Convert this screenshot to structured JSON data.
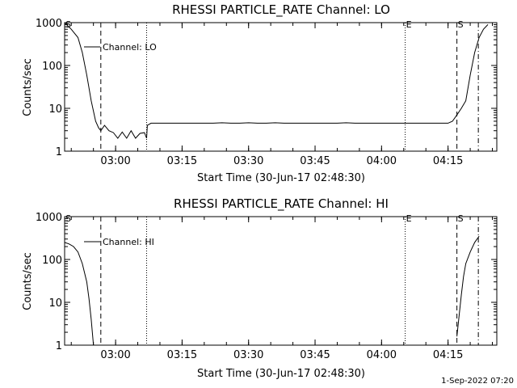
{
  "footer_timestamp": "1-Sep-2022 07:20",
  "chart_data": [
    {
      "type": "line",
      "title": "RHESSI PARTICLE_RATE Channel: LO",
      "xlabel": "Start Time (30-Jun-17 02:48:30)",
      "ylabel": "Counts/sec",
      "y_scale": "log",
      "ylim": [
        1,
        1000
      ],
      "xlim": [
        "02:48:30",
        "04:26:00"
      ],
      "yticks": [
        "1",
        "10",
        "100",
        "1000"
      ],
      "xticks": [
        "03:00",
        "03:15",
        "03:30",
        "03:45",
        "04:00",
        "04:15"
      ],
      "legend": "Channel: LO",
      "legend_position": "top-left",
      "markers": [
        {
          "label": "S",
          "time": "02:48:30",
          "style": "solid"
        },
        {
          "label": "",
          "time": "02:56:40",
          "style": "dashed"
        },
        {
          "label": "",
          "time": "03:07:00",
          "style": "dotted"
        },
        {
          "label": "E",
          "time": "04:05:20",
          "style": "dotted"
        },
        {
          "label": "S",
          "time": "04:17:00",
          "style": "dashed"
        },
        {
          "label": "",
          "time": "04:21:50",
          "style": "dash-dot"
        }
      ],
      "series": [
        {
          "x": [
            "02:48:30",
            "02:50:00",
            "02:51:30",
            "02:52:30",
            "02:53:30",
            "02:54:30",
            "02:55:30",
            "02:56:10",
            "02:56:40",
            "02:57:30",
            "02:58:30",
            "02:59:30",
            "03:00:30",
            "03:01:30",
            "03:02:30",
            "03:03:30",
            "03:04:30",
            "03:05:30",
            "03:06:30",
            "03:07:00",
            "03:07:10",
            "03:08:00",
            "03:10:00",
            "03:12:00",
            "03:14:00",
            "03:16:00",
            "03:18:00",
            "03:20:00",
            "03:22:00",
            "03:24:00",
            "03:26:00",
            "03:28:00",
            "03:30:00",
            "03:32:00",
            "03:34:00",
            "03:36:00",
            "03:38:00",
            "03:40:00",
            "03:42:00",
            "03:44:00",
            "03:46:00",
            "03:48:00",
            "03:50:00",
            "03:52:00",
            "03:54:00",
            "03:56:00",
            "03:58:00",
            "04:00:00",
            "04:02:00",
            "04:04:00",
            "04:05:20",
            "04:07:00",
            "04:09:00",
            "04:11:00",
            "04:12:00",
            "04:13:00",
            "04:14:00",
            "04:15:00",
            "04:16:00",
            "04:17:00",
            "04:18:00",
            "04:19:00",
            "04:20:00",
            "04:21:00",
            "04:22:00",
            "04:23:00",
            "04:24:00"
          ],
          "y": [
            1000,
            700,
            450,
            200,
            60,
            15,
            5,
            3.5,
            3,
            4,
            3,
            2.7,
            2,
            2.8,
            2,
            3,
            2,
            2.6,
            2.7,
            2,
            4,
            4.5,
            4.5,
            4.5,
            4.5,
            4.5,
            4.5,
            4.5,
            4.5,
            4.6,
            4.5,
            4.5,
            4.6,
            4.5,
            4.5,
            4.6,
            4.5,
            4.5,
            4.5,
            4.5,
            4.5,
            4.5,
            4.5,
            4.6,
            4.5,
            4.5,
            4.5,
            4.5,
            4.5,
            4.5,
            4.5,
            4.5,
            4.5,
            4.5,
            4.5,
            4.5,
            4.5,
            4.5,
            5,
            7,
            10,
            15,
            60,
            200,
            450,
            700,
            900
          ]
        }
      ]
    },
    {
      "type": "line",
      "title": "RHESSI PARTICLE_RATE Channel: HI",
      "xlabel": "Start Time (30-Jun-17 02:48:30)",
      "ylabel": "Counts/sec",
      "y_scale": "log",
      "ylim": [
        1,
        1000
      ],
      "xlim": [
        "02:48:30",
        "04:26:00"
      ],
      "yticks": [
        "1",
        "10",
        "100",
        "1000"
      ],
      "xticks": [
        "03:00",
        "03:15",
        "03:30",
        "03:45",
        "04:00",
        "04:15"
      ],
      "legend": "Channel: HI",
      "legend_position": "top-left",
      "markers": [
        {
          "label": "S",
          "time": "02:48:30",
          "style": "solid"
        },
        {
          "label": "",
          "time": "02:56:40",
          "style": "dashed"
        },
        {
          "label": "",
          "time": "03:07:00",
          "style": "dotted"
        },
        {
          "label": "E",
          "time": "04:05:20",
          "style": "dotted"
        },
        {
          "label": "S",
          "time": "04:17:00",
          "style": "dashed"
        },
        {
          "label": "",
          "time": "04:21:50",
          "style": "dash-dot"
        }
      ],
      "series": [
        {
          "x": [
            "02:48:30",
            "02:49:30",
            "02:50:30",
            "02:51:30",
            "02:52:30",
            "02:53:30",
            "02:54:00",
            "02:54:30",
            "02:55:00",
            "04:17:00",
            "04:17:30",
            "04:18:00",
            "04:18:30",
            "04:19:00",
            "04:20:00",
            "04:21:00",
            "04:22:00"
          ],
          "y": [
            250,
            230,
            200,
            150,
            80,
            30,
            12,
            4,
            1,
            1.6,
            5,
            15,
            40,
            80,
            150,
            250,
            350
          ]
        }
      ]
    }
  ]
}
